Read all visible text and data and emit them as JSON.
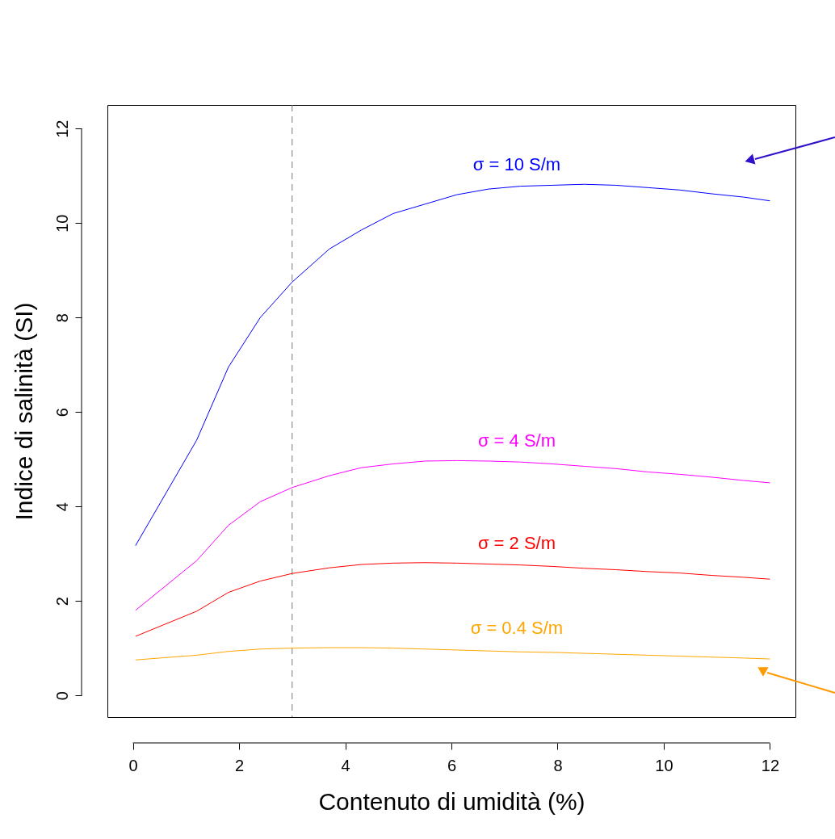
{
  "chart_data": {
    "type": "line",
    "xlabel": "Contenuto di umidità (%)",
    "ylabel": "Indice di salinità (SI)",
    "x": [
      0.05,
      1.2,
      1.8,
      2.4,
      3,
      3.7,
      4.3,
      4.9,
      5.5,
      6.1,
      6.7,
      7.3,
      7.9,
      8.5,
      9.1,
      9.7,
      10.3,
      10.9,
      11.5,
      12
    ],
    "series": [
      {
        "name": "σ = 10 S/m",
        "color": "#0000ff",
        "values": [
          3.17,
          5.4,
          6.95,
          8.0,
          8.75,
          9.45,
          9.85,
          10.2,
          10.4,
          10.6,
          10.72,
          10.78,
          10.8,
          10.82,
          10.8,
          10.75,
          10.7,
          10.62,
          10.55,
          10.47
        ]
      },
      {
        "name": "σ = 4 S/m",
        "color": "#ff00ff",
        "values": [
          1.8,
          2.85,
          3.6,
          4.1,
          4.4,
          4.65,
          4.82,
          4.9,
          4.96,
          4.97,
          4.96,
          4.94,
          4.9,
          4.85,
          4.8,
          4.73,
          4.68,
          4.62,
          4.55,
          4.5
        ]
      },
      {
        "name": "σ = 2 S/m",
        "color": "#ff0000",
        "values": [
          1.25,
          1.78,
          2.18,
          2.42,
          2.58,
          2.7,
          2.77,
          2.8,
          2.81,
          2.8,
          2.78,
          2.76,
          2.73,
          2.69,
          2.66,
          2.62,
          2.59,
          2.54,
          2.5,
          2.46
        ]
      },
      {
        "name": "σ = 0.4 S/m",
        "color": "#ffa500",
        "values": [
          0.75,
          0.85,
          0.93,
          0.98,
          1.0,
          1.01,
          1.01,
          1.0,
          0.98,
          0.96,
          0.94,
          0.92,
          0.91,
          0.89,
          0.87,
          0.85,
          0.83,
          0.81,
          0.79,
          0.77
        ]
      }
    ],
    "xlim": [
      -0.48,
      12.48
    ],
    "ylim": [
      -0.46,
      12.5
    ],
    "xticks": [
      0,
      2,
      4,
      6,
      8,
      10,
      12
    ],
    "yticks": [
      0,
      2,
      4,
      6,
      8,
      10,
      12
    ],
    "ref_lines": [
      {
        "axis": "x",
        "value": 3,
        "color": "#777777",
        "line_style": "dashed"
      }
    ]
  }
}
